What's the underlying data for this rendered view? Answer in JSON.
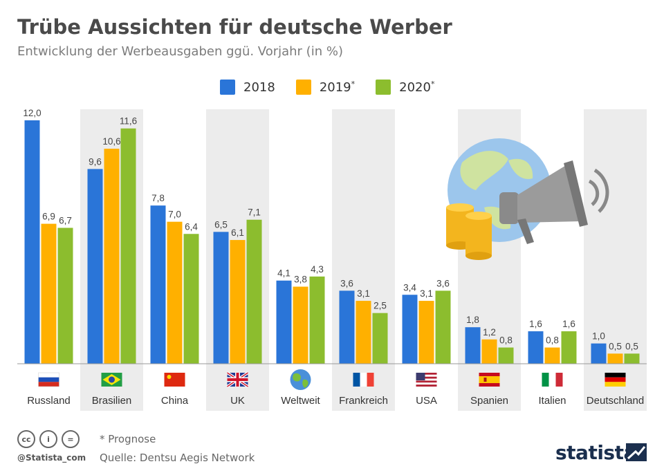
{
  "title": "Trübe Aussichten für deutsche Werber",
  "subtitle": "Entwicklung der Werbeausgaben ggü. Vorjahr (in %)",
  "colors": {
    "2018": "#2a75d8",
    "2019": "#ffb000",
    "2020": "#8cbd2e",
    "band": "#ececec",
    "label": "#444444"
  },
  "legend": [
    {
      "label": "2018",
      "sup": ""
    },
    {
      "label": "2019",
      "sup": "*"
    },
    {
      "label": "2020",
      "sup": "*"
    }
  ],
  "chart_data": {
    "type": "bar",
    "categories": [
      "Russland",
      "Brasilien",
      "China",
      "UK",
      "Weltweit",
      "Frankreich",
      "USA",
      "Spanien",
      "Italien",
      "Deutschland"
    ],
    "series": [
      {
        "name": "2018",
        "values": [
          12.0,
          9.6,
          7.8,
          6.5,
          4.1,
          3.6,
          3.4,
          1.8,
          1.6,
          1.0
        ],
        "labels": [
          "12,0",
          "9,6",
          "7,8",
          "6,5",
          "4,1",
          "3,6",
          "3,4",
          "1,8",
          "1,6",
          "1,0"
        ]
      },
      {
        "name": "2019*",
        "values": [
          6.9,
          10.6,
          7.0,
          6.1,
          3.8,
          3.1,
          3.1,
          1.2,
          0.8,
          0.5
        ],
        "labels": [
          "6,9",
          "10,6",
          "7,0",
          "6,1",
          "3,8",
          "3,1",
          "3,1",
          "1,2",
          "0,8",
          "0,5"
        ]
      },
      {
        "name": "2020*",
        "values": [
          6.7,
          11.6,
          6.4,
          7.1,
          4.3,
          2.5,
          3.6,
          0.8,
          1.6,
          0.5
        ],
        "labels": [
          "6,7",
          "11,6",
          "6,4",
          "7,1",
          "4,3",
          "2,5",
          "3,6",
          "0,8",
          "1,6",
          "0,5"
        ]
      }
    ],
    "flags": [
      "russia",
      "brazil",
      "china",
      "uk",
      "globe",
      "france",
      "usa",
      "spain",
      "italy",
      "germany"
    ],
    "ylim": [
      0,
      12
    ],
    "grid": false,
    "legend_position": "top-center"
  },
  "footer": {
    "note": "* Prognose",
    "source": "Quelle: Dentsu Aegis Network",
    "handle": "@Statista_com",
    "brand": "statista"
  }
}
